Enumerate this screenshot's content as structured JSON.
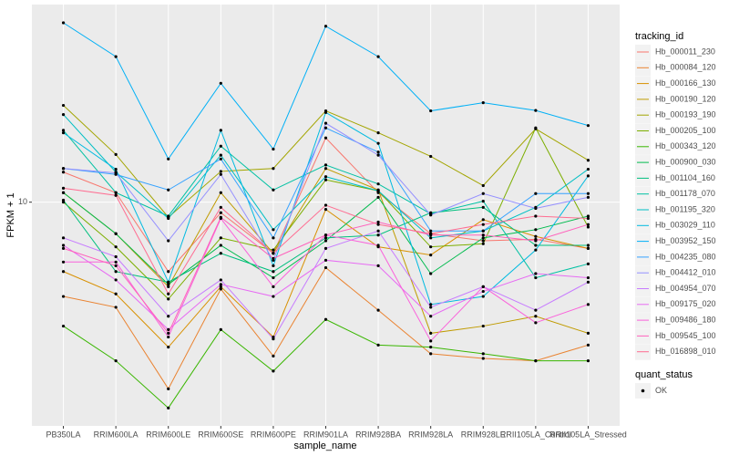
{
  "chart_data": {
    "type": "line",
    "x_label": "sample_name",
    "y_label": "FPKM + 1",
    "log_y": true,
    "grid": true,
    "categories": [
      "PB350LA",
      "RRIM600LA",
      "RRIM600LE",
      "RRIM600SE",
      "RRIM600PE",
      "RRIM901LA",
      "RRIM928BA",
      "RRIM928LA",
      "RRIM928LE",
      "RRII105LA_Control",
      "RRII105LA_Stressed"
    ],
    "ylim": [
      1.07,
      72
    ],
    "yticks": [
      10
    ],
    "legend_title": "tracking_id",
    "point_legend_title": "quant_status",
    "point_legend_label": "OK",
    "point_color": "#000000",
    "series": [
      {
        "name": "Hb_000011_230",
        "color": "#F8766D",
        "values": [
          13.5,
          11,
          5,
          9,
          6,
          19,
          11,
          7.3,
          6.8,
          6.9,
          6.3
        ]
      },
      {
        "name": "Hb_000084_120",
        "color": "#EA8331",
        "values": [
          3.9,
          3.5,
          1.55,
          4.2,
          2.15,
          5.2,
          3.4,
          2.2,
          2.1,
          2.05,
          2.4
        ]
      },
      {
        "name": "Hb_000166_130",
        "color": "#D89000",
        "values": [
          5,
          4,
          2.35,
          4.3,
          2.6,
          9.3,
          6.4,
          5.9,
          8.4,
          7.1,
          6.3
        ]
      },
      {
        "name": "Hb_000190_120",
        "color": "#C09B00",
        "values": [
          11,
          7.3,
          4.3,
          11,
          6,
          14,
          11.3,
          2.7,
          2.9,
          3.2,
          2.7
        ]
      },
      {
        "name": "Hb_000193_190",
        "color": "#A3A500",
        "values": [
          26.3,
          16.1,
          8.6,
          13.6,
          14,
          24.9,
          20,
          15.8,
          11.8,
          20.8,
          15.2
        ]
      },
      {
        "name": "Hb_000205_100",
        "color": "#7CAE00",
        "values": [
          10,
          6.4,
          3.8,
          7,
          6.2,
          12.5,
          11.2,
          6.4,
          6.6,
          21,
          7.8
        ]
      },
      {
        "name": "Hb_000343_120",
        "color": "#39B600",
        "values": [
          2.9,
          2.05,
          1.28,
          2.8,
          1.85,
          3.1,
          2.4,
          2.35,
          2.2,
          2.05,
          2.05
        ]
      },
      {
        "name": "Hb_000900_030",
        "color": "#00BB4E",
        "values": [
          11,
          7.3,
          4.4,
          6.5,
          4.7,
          6.8,
          10.5,
          4.9,
          7,
          7.6,
          8.7
        ]
      },
      {
        "name": "Hb_001104_160",
        "color": "#00BF7D",
        "values": [
          10.2,
          5,
          4.5,
          6,
          5,
          7,
          7.2,
          9,
          9.5,
          6.5,
          6.5
        ]
      },
      {
        "name": "Hb_001178_070",
        "color": "#00C1A3",
        "values": [
          20.5,
          11,
          8.7,
          17.5,
          11.3,
          14.5,
          12,
          8.9,
          10.1,
          4.7,
          5.4
        ]
      },
      {
        "name": "Hb_001195_320",
        "color": "#00BFC4",
        "values": [
          24,
          13.5,
          8.5,
          16,
          7.6,
          12.9,
          11.2,
          7,
          7.5,
          9.5,
          13.9
        ]
      },
      {
        "name": "Hb_003029_110",
        "color": "#00BAE0",
        "values": [
          20,
          13.9,
          4.5,
          20.5,
          5.3,
          24.5,
          18,
          3.6,
          3.9,
          6.2,
          13
        ]
      },
      {
        "name": "Hb_003952_150",
        "color": "#00B0F6",
        "values": [
          60,
          42.8,
          15.4,
          32.8,
          17,
          58,
          42.8,
          24.9,
          27,
          25,
          21.5
        ]
      },
      {
        "name": "Hb_004235_080",
        "color": "#35A2FF",
        "values": [
          14,
          13.2,
          11.3,
          15.4,
          7,
          21,
          16.5,
          7.5,
          7.5,
          10.9,
          10.9
        ]
      },
      {
        "name": "Hb_004412_010",
        "color": "#9590FF",
        "values": [
          14,
          13.4,
          6.8,
          13.2,
          5.6,
          22,
          16,
          8.8,
          10.9,
          9.4,
          10.5
        ]
      },
      {
        "name": "Hb_004954_070",
        "color": "#C77CFF",
        "values": [
          7,
          5.8,
          3.2,
          4.6,
          2.55,
          6.3,
          7.5,
          3.5,
          4.3,
          3.4,
          4.5
        ]
      },
      {
        "name": "Hb_009175_020",
        "color": "#E76BF3",
        "values": [
          6.5,
          4.6,
          2.8,
          4.4,
          3.9,
          5.6,
          5.3,
          3.2,
          4.1,
          4.9,
          4.7
        ]
      },
      {
        "name": "Hb_009486_180",
        "color": "#FA62DB",
        "values": [
          5.5,
          5.5,
          2.6,
          8.5,
          4.3,
          7.2,
          6.5,
          2.5,
          4.3,
          3,
          3.6
        ]
      },
      {
        "name": "Hb_009545_100",
        "color": "#FF62BC",
        "values": [
          6.3,
          5.3,
          2.7,
          8.6,
          5.7,
          7.2,
          8.2,
          7.2,
          7.2,
          6.8,
          8
        ]
      },
      {
        "name": "Hb_016898_010",
        "color": "#FF6C91",
        "values": [
          11.5,
          10.7,
          4,
          9.5,
          6,
          9.7,
          8,
          7.3,
          8,
          8.7,
          8.5
        ]
      }
    ]
  }
}
